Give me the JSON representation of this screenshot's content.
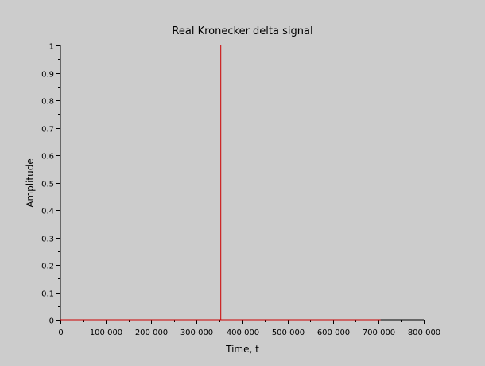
{
  "chart_data": {
    "type": "line",
    "title": "Real Kronecker delta signal",
    "xlabel": "Time, t",
    "ylabel": "Amplitude",
    "xlim": [
      0,
      800000
    ],
    "ylim": [
      0,
      1
    ],
    "x_ticks": [
      0,
      100000,
      200000,
      300000,
      400000,
      500000,
      600000,
      700000,
      800000
    ],
    "x_tick_labels": [
      "0",
      "100 000",
      "200 000",
      "300 000",
      "400 000",
      "500 000",
      "600 000",
      "700 000",
      "800 000"
    ],
    "y_ticks": [
      0,
      0.1,
      0.2,
      0.3,
      0.4,
      0.5,
      0.6,
      0.7,
      0.8,
      0.9,
      1
    ],
    "y_tick_labels": [
      "0",
      "0.1",
      "0.2",
      "0.3",
      "0.4",
      "0.5",
      "0.6",
      "0.7",
      "0.8",
      "0.9",
      "1"
    ],
    "grid": false,
    "series": [
      {
        "color": "#cc0000",
        "x": [
          0,
          353000,
          353000,
          353000,
          705000
        ],
        "y": [
          0,
          0,
          1,
          0,
          0
        ]
      }
    ]
  }
}
